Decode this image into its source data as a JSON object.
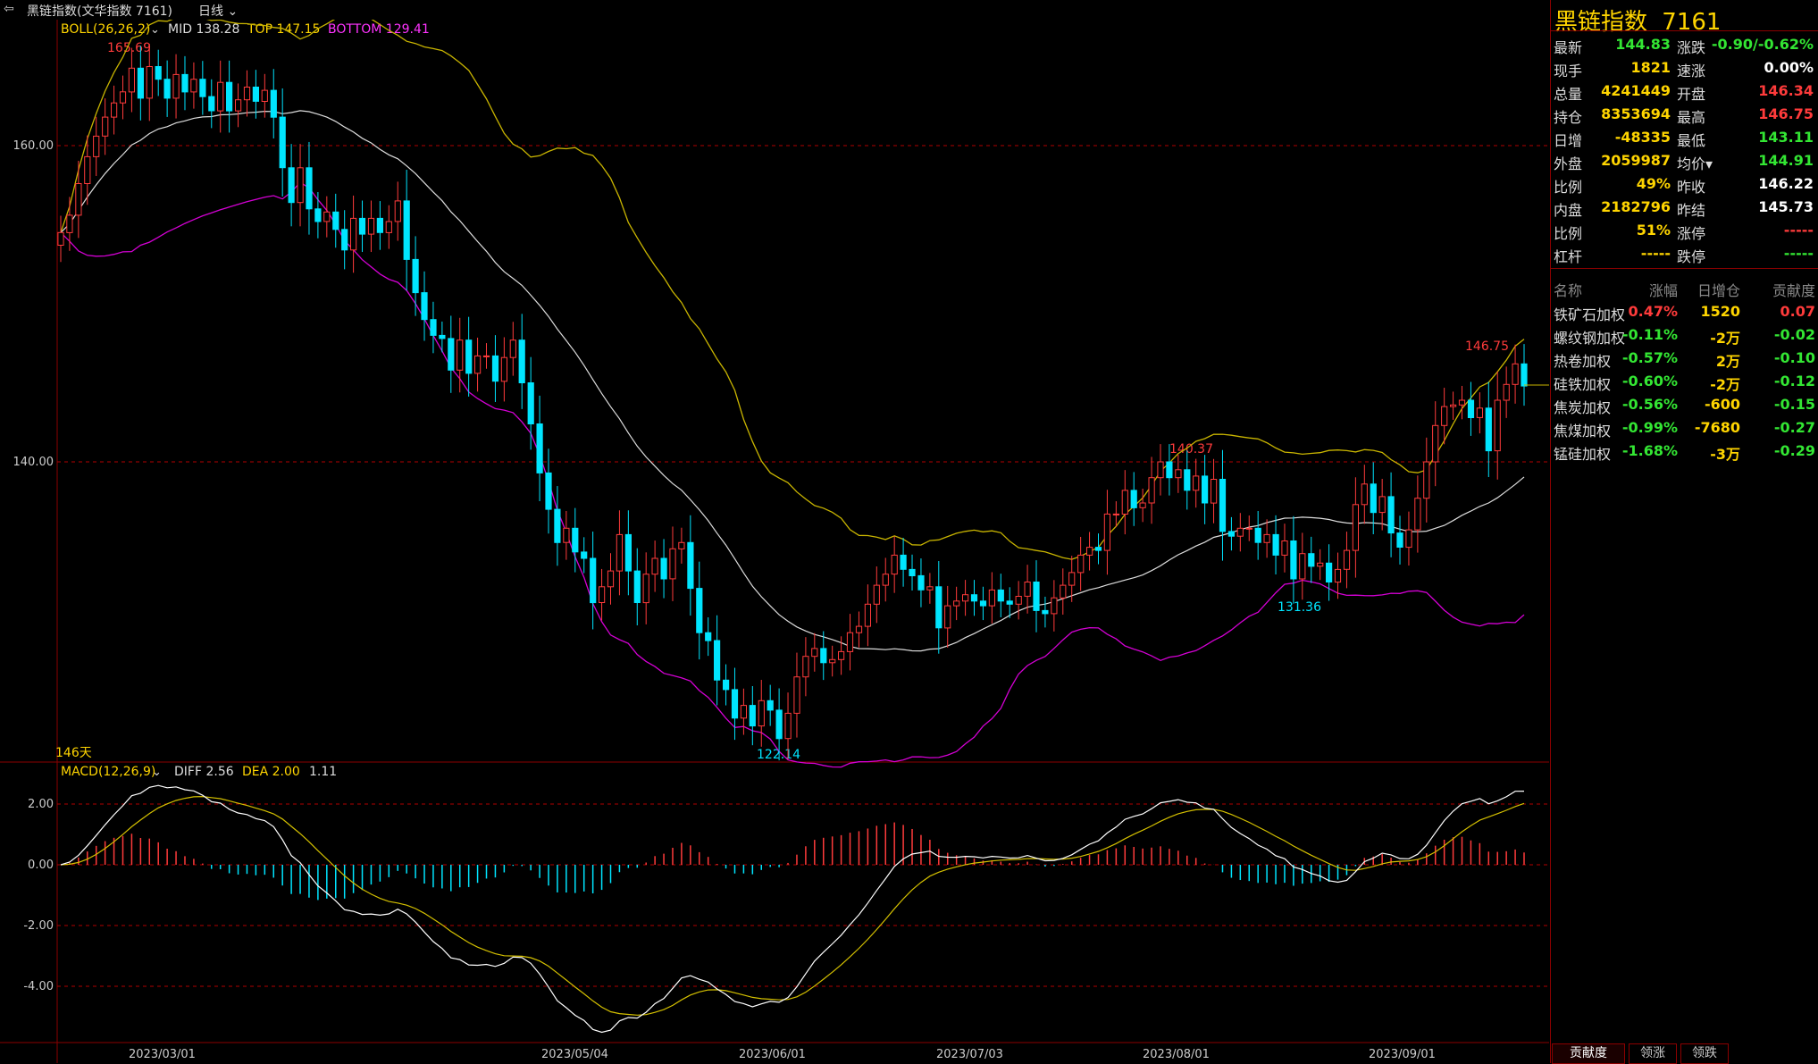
{
  "toolbar": {
    "title": "黑链指数(文华指数 7161)",
    "period": "日线"
  },
  "main_chart": {
    "boll_label": "BOLL(26,26,2)",
    "mid": "MID 138.28",
    "top": "TOP 147.15",
    "bottom": "BOTTOM 129.41",
    "days_label": "146天",
    "price_ticks": [
      "160.00",
      "140.00"
    ],
    "annotations": [
      "165.69",
      "122.14",
      "140.37",
      "131.36",
      "146.75"
    ]
  },
  "macd": {
    "label": "MACD(12,26,9)",
    "diff": "DIFF 2.56",
    "dea": "DEA 2.00",
    "macd": "1.11",
    "ticks": [
      "2.00",
      "0.00",
      "-2.00",
      "-4.00"
    ]
  },
  "dates": [
    "2023/03/01",
    "2023/05/04",
    "2023/06/01",
    "2023/07/03",
    "2023/08/01",
    "2023/09/01"
  ],
  "colors": {
    "up": "#ff3b3b",
    "down": "#00e5ff",
    "mid": "#dddddd",
    "top": "#c8b400",
    "bottom": "#d400d4",
    "diff": "#ffffff",
    "dea": "#d4c000",
    "grid": "#8b0000"
  },
  "chart_data": {
    "type": "candlestick",
    "title": "黑链指数(文华指数 7161)",
    "price_range": [
      118.5,
      168.5
    ],
    "macd_range": [
      -5.6,
      3.0
    ],
    "x_labels": [
      "2023/03/01",
      "2023/05/04",
      "2023/06/01",
      "2023/07/03",
      "2023/08/01",
      "2023/09/01"
    ],
    "close": [
      154.5,
      155.6,
      157.6,
      159.3,
      160.6,
      161.8,
      162.7,
      163.4,
      164.9,
      163.0,
      165.0,
      164.2,
      163.0,
      164.5,
      163.4,
      164.2,
      163.1,
      162.2,
      164.0,
      162.2,
      162.9,
      163.7,
      162.8,
      163.5,
      161.8,
      158.6,
      156.4,
      158.6,
      156.0,
      155.2,
      155.8,
      154.7,
      153.4,
      155.4,
      154.4,
      155.4,
      154.5,
      155.2,
      156.5,
      152.8,
      150.7,
      149.0,
      148.0,
      147.8,
      145.8,
      147.7,
      145.6,
      146.7,
      146.7,
      145.1,
      146.6,
      147.7,
      145.0,
      142.4,
      139.3,
      137.0,
      134.9,
      135.8,
      134.3,
      133.9,
      131.1,
      132.1,
      133.1,
      135.4,
      133.1,
      131.1,
      132.9,
      133.9,
      132.6,
      134.5,
      134.9,
      132.0,
      129.2,
      128.7,
      126.2,
      125.6,
      123.8,
      124.6,
      123.3,
      124.9,
      124.3,
      122.5,
      124.1,
      126.4,
      127.7,
      128.2,
      127.3,
      127.5,
      128.0,
      129.2,
      129.6,
      131.0,
      132.2,
      132.9,
      134.1,
      133.2,
      132.8,
      131.9,
      132.1,
      129.5,
      130.9,
      131.2,
      131.6,
      131.2,
      130.9,
      131.9,
      131.2,
      131.0,
      131.5,
      132.4,
      130.6,
      130.4,
      131.4,
      132.2,
      133.0,
      134.1,
      134.6,
      134.4,
      136.7,
      136.7,
      138.2,
      137.1,
      137.4,
      139.0,
      140.0,
      139.0,
      139.5,
      138.2,
      139.1,
      137.4,
      138.9,
      135.6,
      135.3,
      135.8,
      135.8,
      134.9,
      135.4,
      134.1,
      135.0,
      132.6,
      134.2,
      133.4,
      133.6,
      132.4,
      133.2,
      134.4,
      137.3,
      138.6,
      136.8,
      137.8,
      135.5,
      134.6,
      135.7,
      137.7,
      140.0,
      142.3,
      143.5,
      143.6,
      143.9,
      142.8,
      143.4,
      140.7,
      143.9,
      144.9,
      146.2,
      144.8
    ],
    "boll_mid_last": 138.28,
    "boll_top_last": 147.15,
    "boll_bottom_last": 129.41,
    "diff_last": 2.56,
    "dea_last": 2.0,
    "macd_last": 1.11
  },
  "quote": {
    "name": "黑链指数",
    "code": "7161",
    "rows": [
      {
        "l1": "最新",
        "v1": "144.83",
        "c1": "grn",
        "l2": "涨跌",
        "v2": "-0.90/-0.62%",
        "c2": "grn"
      },
      {
        "l1": "现手",
        "v1": "1821",
        "c1": "yel",
        "l2": "速涨",
        "v2": "0.00%",
        "c2": "wht"
      },
      {
        "l1": "总量",
        "v1": "4241449",
        "c1": "yel",
        "l2": "开盘",
        "v2": "146.34",
        "c2": "red"
      },
      {
        "l1": "持仓",
        "v1": "8353694",
        "c1": "yel",
        "l2": "最高",
        "v2": "146.75",
        "c2": "red"
      },
      {
        "l1": "日增",
        "v1": "-48335",
        "c1": "yel",
        "l2": "最低",
        "v2": "143.11",
        "c2": "grn"
      },
      {
        "l1": "外盘",
        "v1": "2059987",
        "c1": "yel",
        "l2": "均价▾",
        "v2": "144.91",
        "c2": "grn"
      },
      {
        "l1": "比例",
        "v1": "49%",
        "c1": "yel",
        "l2": "昨收",
        "v2": "146.22",
        "c2": "wht"
      },
      {
        "l1": "内盘",
        "v1": "2182796",
        "c1": "yel",
        "l2": "昨结",
        "v2": "145.73",
        "c2": "wht"
      },
      {
        "l1": "比例",
        "v1": "51%",
        "c1": "yel",
        "l2": "涨停",
        "v2": "-----",
        "c2": "red"
      },
      {
        "l1": "杠杆",
        "v1": "-----",
        "c1": "yel",
        "l2": "跌停",
        "v2": "-----",
        "c2": "grn"
      }
    ]
  },
  "components": {
    "headers": [
      "名称",
      "涨幅",
      "日增仓",
      "贡献度"
    ],
    "rows": [
      {
        "name": "铁矿石加权",
        "chg": "0.47%",
        "oi": "1520",
        "contrib": "0.07",
        "c": "red"
      },
      {
        "name": "螺纹钢加权",
        "chg": "-0.11%",
        "oi": "-2万",
        "contrib": "-0.02",
        "c": "grn"
      },
      {
        "name": "热卷加权",
        "chg": "-0.57%",
        "oi": "2万",
        "contrib": "-0.10",
        "c": "grn"
      },
      {
        "name": "硅铁加权",
        "chg": "-0.60%",
        "oi": "-2万",
        "contrib": "-0.12",
        "c": "grn"
      },
      {
        "name": "焦炭加权",
        "chg": "-0.56%",
        "oi": "-600",
        "contrib": "-0.15",
        "c": "grn"
      },
      {
        "name": "焦煤加权",
        "chg": "-0.99%",
        "oi": "-7680",
        "contrib": "-0.27",
        "c": "grn"
      },
      {
        "name": "锰硅加权",
        "chg": "-1.68%",
        "oi": "-3万",
        "contrib": "-0.29",
        "c": "grn"
      }
    ]
  },
  "tabs": [
    "贡献度",
    "领涨",
    "领跌"
  ]
}
